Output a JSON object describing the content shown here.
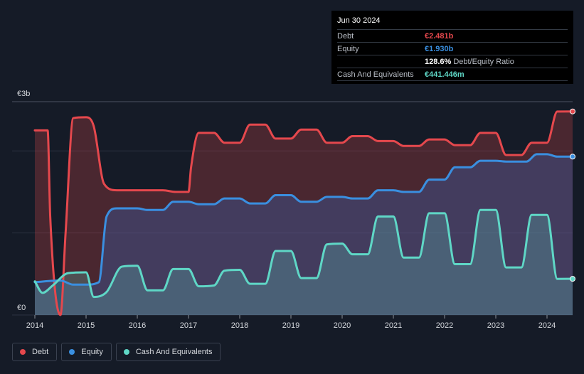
{
  "tooltip": {
    "date": "Jun 30 2024",
    "debt_label": "Debt",
    "debt_value": "€2.481b",
    "equity_label": "Equity",
    "equity_value": "€1.930b",
    "ratio_value": "128.6%",
    "ratio_label": "Debt/Equity Ratio",
    "cash_label": "Cash And Equivalents",
    "cash_value": "€441.446m"
  },
  "legend": {
    "debt": "Debt",
    "equity": "Equity",
    "cash": "Cash And Equivalents"
  },
  "colors": {
    "debt": "#e5484d",
    "equity": "#3a8fe0",
    "cash": "#5fd7c6"
  },
  "chart_data": {
    "type": "line",
    "title": "",
    "xlabel": "",
    "ylabel": "",
    "y_unit": "€",
    "ylim": [
      0,
      2.6
    ],
    "xlim": [
      2014,
      2024.5
    ],
    "y_tick_labels": [
      {
        "value": 0,
        "label": "€0"
      },
      {
        "value": 2.6,
        "label": "€3b"
      }
    ],
    "x_ticks": [
      2014,
      2015,
      2016,
      2017,
      2018,
      2019,
      2020,
      2021,
      2022,
      2023,
      2024
    ],
    "series": [
      {
        "name": "Debt",
        "points": [
          [
            2014.0,
            2.25
          ],
          [
            2014.25,
            2.25
          ],
          [
            2014.3,
            1.2
          ],
          [
            2014.5,
            0.0
          ],
          [
            2014.6,
            1.0
          ],
          [
            2014.75,
            2.4
          ],
          [
            2015.0,
            2.41
          ],
          [
            2015.15,
            2.3
          ],
          [
            2015.35,
            1.6
          ],
          [
            2015.6,
            1.52
          ],
          [
            2016.0,
            1.52
          ],
          [
            2016.5,
            1.52
          ],
          [
            2016.75,
            1.5
          ],
          [
            2017.0,
            1.5
          ],
          [
            2017.05,
            1.8
          ],
          [
            2017.2,
            2.22
          ],
          [
            2017.5,
            2.22
          ],
          [
            2017.7,
            2.1
          ],
          [
            2018.0,
            2.1
          ],
          [
            2018.2,
            2.32
          ],
          [
            2018.5,
            2.32
          ],
          [
            2018.7,
            2.15
          ],
          [
            2019.0,
            2.15
          ],
          [
            2019.2,
            2.26
          ],
          [
            2019.5,
            2.26
          ],
          [
            2019.7,
            2.1
          ],
          [
            2020.0,
            2.1
          ],
          [
            2020.2,
            2.18
          ],
          [
            2020.5,
            2.18
          ],
          [
            2020.7,
            2.12
          ],
          [
            2021.0,
            2.12
          ],
          [
            2021.2,
            2.06
          ],
          [
            2021.5,
            2.06
          ],
          [
            2021.7,
            2.14
          ],
          [
            2022.0,
            2.14
          ],
          [
            2022.2,
            2.07
          ],
          [
            2022.5,
            2.07
          ],
          [
            2022.7,
            2.22
          ],
          [
            2023.0,
            2.22
          ],
          [
            2023.2,
            1.95
          ],
          [
            2023.5,
            1.95
          ],
          [
            2023.7,
            2.1
          ],
          [
            2024.0,
            2.1
          ],
          [
            2024.2,
            2.48
          ],
          [
            2024.5,
            2.481
          ]
        ]
      },
      {
        "name": "Equity",
        "points": [
          [
            2014.0,
            0.4
          ],
          [
            2014.5,
            0.42
          ],
          [
            2014.75,
            0.37
          ],
          [
            2015.0,
            0.37
          ],
          [
            2015.25,
            0.4
          ],
          [
            2015.4,
            1.2
          ],
          [
            2015.6,
            1.3
          ],
          [
            2016.0,
            1.3
          ],
          [
            2016.2,
            1.28
          ],
          [
            2016.5,
            1.28
          ],
          [
            2016.7,
            1.38
          ],
          [
            2017.0,
            1.38
          ],
          [
            2017.2,
            1.35
          ],
          [
            2017.5,
            1.35
          ],
          [
            2017.7,
            1.42
          ],
          [
            2018.0,
            1.42
          ],
          [
            2018.2,
            1.36
          ],
          [
            2018.5,
            1.36
          ],
          [
            2018.7,
            1.46
          ],
          [
            2019.0,
            1.46
          ],
          [
            2019.2,
            1.38
          ],
          [
            2019.5,
            1.38
          ],
          [
            2019.7,
            1.44
          ],
          [
            2020.0,
            1.44
          ],
          [
            2020.2,
            1.42
          ],
          [
            2020.5,
            1.42
          ],
          [
            2020.7,
            1.52
          ],
          [
            2021.0,
            1.52
          ],
          [
            2021.2,
            1.5
          ],
          [
            2021.5,
            1.5
          ],
          [
            2021.7,
            1.65
          ],
          [
            2022.0,
            1.65
          ],
          [
            2022.2,
            1.8
          ],
          [
            2022.5,
            1.8
          ],
          [
            2022.7,
            1.88
          ],
          [
            2023.0,
            1.88
          ],
          [
            2023.2,
            1.87
          ],
          [
            2023.6,
            1.87
          ],
          [
            2023.8,
            1.96
          ],
          [
            2024.0,
            1.96
          ],
          [
            2024.2,
            1.93
          ],
          [
            2024.5,
            1.93
          ]
        ]
      },
      {
        "name": "Cash And Equivalents",
        "points": [
          [
            2014.0,
            0.41
          ],
          [
            2014.15,
            0.27
          ],
          [
            2014.35,
            0.36
          ],
          [
            2014.65,
            0.51
          ],
          [
            2015.0,
            0.52
          ],
          [
            2015.15,
            0.22
          ],
          [
            2015.4,
            0.28
          ],
          [
            2015.7,
            0.59
          ],
          [
            2016.0,
            0.6
          ],
          [
            2016.2,
            0.3
          ],
          [
            2016.5,
            0.3
          ],
          [
            2016.7,
            0.56
          ],
          [
            2017.0,
            0.56
          ],
          [
            2017.2,
            0.35
          ],
          [
            2017.5,
            0.36
          ],
          [
            2017.7,
            0.54
          ],
          [
            2018.0,
            0.55
          ],
          [
            2018.2,
            0.38
          ],
          [
            2018.5,
            0.38
          ],
          [
            2018.7,
            0.78
          ],
          [
            2019.0,
            0.78
          ],
          [
            2019.2,
            0.45
          ],
          [
            2019.5,
            0.45
          ],
          [
            2019.7,
            0.86
          ],
          [
            2020.0,
            0.87
          ],
          [
            2020.2,
            0.74
          ],
          [
            2020.5,
            0.74
          ],
          [
            2020.7,
            1.2
          ],
          [
            2021.0,
            1.2
          ],
          [
            2021.2,
            0.7
          ],
          [
            2021.5,
            0.7
          ],
          [
            2021.7,
            1.24
          ],
          [
            2022.0,
            1.24
          ],
          [
            2022.2,
            0.62
          ],
          [
            2022.5,
            0.62
          ],
          [
            2022.7,
            1.28
          ],
          [
            2023.0,
            1.28
          ],
          [
            2023.2,
            0.58
          ],
          [
            2023.5,
            0.58
          ],
          [
            2023.7,
            1.22
          ],
          [
            2024.0,
            1.22
          ],
          [
            2024.2,
            0.44
          ],
          [
            2024.5,
            0.441
          ]
        ]
      }
    ]
  }
}
